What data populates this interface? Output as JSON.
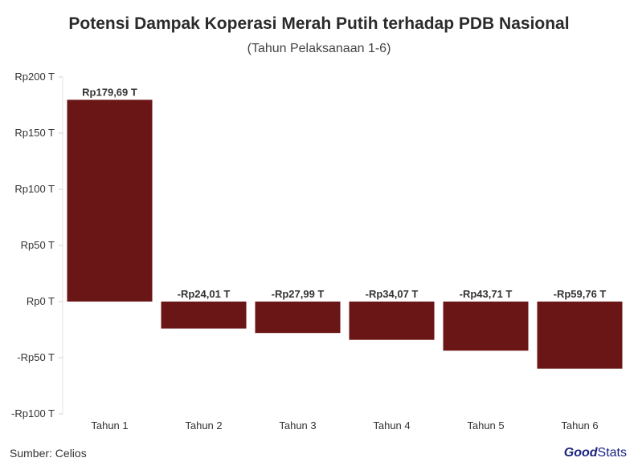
{
  "chart_data": {
    "type": "bar",
    "title": "Potensi Dampak Koperasi Merah Putih terhadap PDB Nasional",
    "subtitle": "(Tahun Pelaksanaan 1-6)",
    "categories": [
      "Tahun 1",
      "Tahun 2",
      "Tahun 3",
      "Tahun 4",
      "Tahun 5",
      "Tahun 6"
    ],
    "values": [
      179.69,
      -24.01,
      -27.99,
      -34.07,
      -43.71,
      -59.76
    ],
    "data_labels": [
      "Rp179,69 T",
      "-Rp24,01 T",
      "-Rp27,99 T",
      "-Rp34,07 T",
      "-Rp43,71 T",
      "-Rp59,76 T"
    ],
    "yticks": [
      200,
      150,
      100,
      50,
      0,
      -50,
      -100
    ],
    "ytick_labels": [
      "Rp200 T",
      "Rp150 T",
      "Rp100 T",
      "Rp50 T",
      "Rp0 T",
      "-Rp50 T",
      "-Rp100 T"
    ],
    "ylim": [
      -100,
      200
    ],
    "bar_color": "#6b1616",
    "grid": false
  },
  "footer": {
    "source": "Sumber: Celios",
    "brand_good": "Good",
    "brand_stats": "Stats"
  }
}
